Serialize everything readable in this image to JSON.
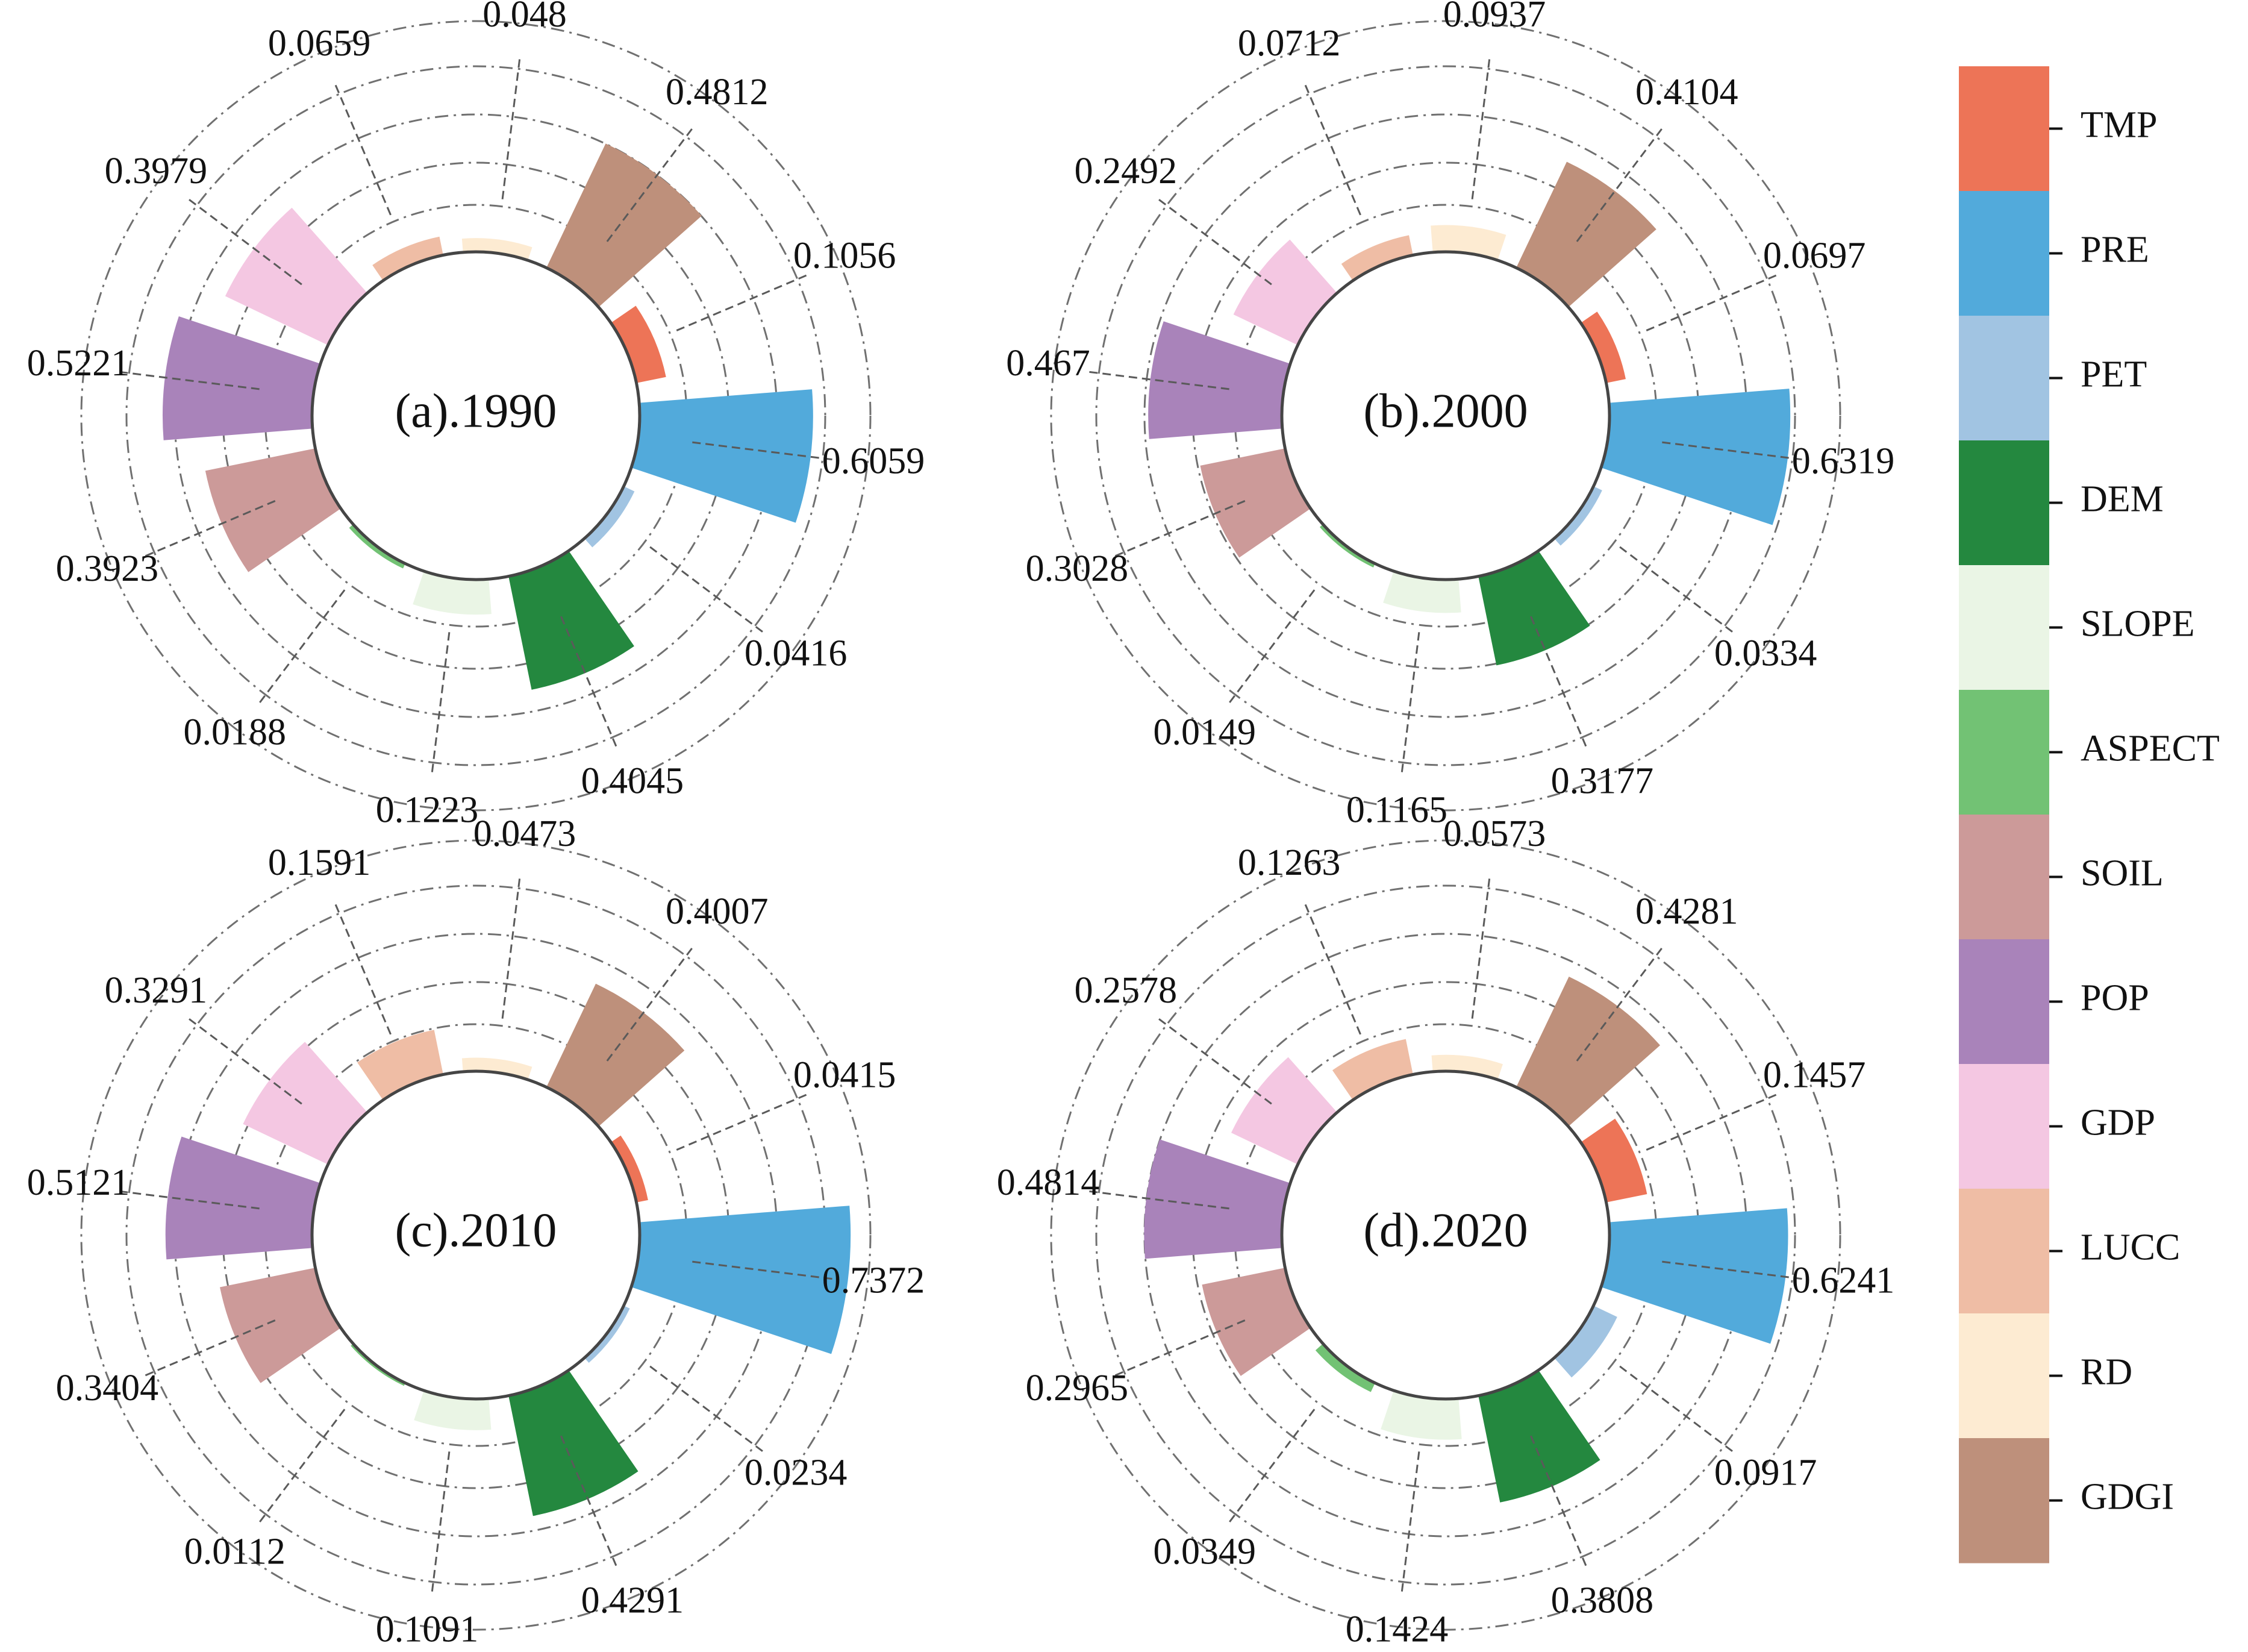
{
  "chart_data": {
    "type": "radial-bar",
    "variables": [
      "TMP",
      "PRE",
      "PET",
      "DEM",
      "SLOPE",
      "ASPECT",
      "SOIL",
      "POP",
      "GDP",
      "LUCC",
      "RD",
      "GDGI"
    ],
    "colors": {
      "TMP": "#ED7457",
      "PRE": "#52AADB",
      "PET": "#A1C4E2",
      "DEM": "#24883F",
      "SLOPE": "#EAF5E5",
      "ASPECT": "#72C274",
      "SOIL": "#CC9A99",
      "POP": "#A983BA",
      "GDP": "#F4C7E2",
      "LUCC": "#EFBDA5",
      "RD": "#FDEBD2",
      "GDGI": "#BE907B"
    },
    "legend": {
      "items": [
        "TMP",
        "PRE",
        "PET",
        "DEM",
        "SLOPE",
        "ASPECT",
        "SOIL",
        "POP",
        "GDP",
        "LUCC",
        "RD",
        "GDGI"
      ]
    },
    "panels": [
      {
        "title": "(a).1990",
        "values": {
          "TMP": 0.1056,
          "PRE": 0.6059,
          "PET": 0.0416,
          "DEM": 0.4045,
          "SLOPE": 0.1223,
          "ASPECT": 0.0188,
          "SOIL": 0.3923,
          "POP": 0.5221,
          "GDP": 0.3979,
          "LUCC": 0.0659,
          "RD": 0.048,
          "GDGI": 0.4812
        },
        "labels": {
          "TMP": "0.1056",
          "PRE": "0.6059",
          "PET": "0.0416",
          "DEM": "0.4045",
          "SLOPE": "0.1223",
          "ASPECT": "0.0188",
          "SOIL": "0.3923",
          "POP": "0.5221",
          "GDP": "0.3979",
          "LUCC": "0.0659",
          "RD": "0.048",
          "GDGI": "0.4812"
        }
      },
      {
        "title": "(b).2000",
        "values": {
          "TMP": 0.0697,
          "PRE": 0.6319,
          "PET": 0.0334,
          "DEM": 0.3177,
          "SLOPE": 0.1165,
          "ASPECT": 0.0149,
          "SOIL": 0.3028,
          "POP": 0.467,
          "GDP": 0.2492,
          "LUCC": 0.0712,
          "RD": 0.0937,
          "GDGI": 0.4104
        },
        "labels": {
          "TMP": "0.0697",
          "PRE": "0.6319",
          "PET": "0.0334",
          "DEM": "0.3177",
          "SLOPE": "0.1165",
          "ASPECT": "0.0149",
          "SOIL": "0.3028",
          "POP": "0.467",
          "GDP": "0.2492",
          "LUCC": "0.0712",
          "RD": "0.0937",
          "GDGI": "0.4104"
        }
      },
      {
        "title": "(c).2010",
        "values": {
          "TMP": 0.0415,
          "PRE": 0.7372,
          "PET": 0.0234,
          "DEM": 0.4291,
          "SLOPE": 0.1091,
          "ASPECT": 0.0112,
          "SOIL": 0.3404,
          "POP": 0.5121,
          "GDP": 0.3291,
          "LUCC": 0.1591,
          "RD": 0.0473,
          "GDGI": 0.4007
        },
        "labels": {
          "TMP": "0.0415",
          "PRE": "0.7372",
          "PET": "0.0234",
          "DEM": "0.4291",
          "SLOPE": "0.1091",
          "ASPECT": "0.0112",
          "SOIL": "0.3404",
          "POP": "0.5121",
          "GDP": "0.3291",
          "LUCC": "0.1591",
          "RD": "0.0473",
          "GDGI": "0.4007"
        }
      },
      {
        "title": "(d).2020",
        "values": {
          "TMP": 0.1457,
          "PRE": 0.6241,
          "PET": 0.0917,
          "DEM": 0.3808,
          "SLOPE": 0.1424,
          "ASPECT": 0.0349,
          "SOIL": 0.2965,
          "POP": 0.4814,
          "GDP": 0.2578,
          "LUCC": 0.1263,
          "RD": 0.0573,
          "GDGI": 0.4281
        },
        "labels": {
          "TMP": "0.1457",
          "PRE": "0.6241",
          "PET": "0.0917",
          "DEM": "0.3808",
          "SLOPE": "0.1424",
          "ASPECT": "0.0349",
          "SOIL": "0.2965",
          "POP": "0.4814",
          "GDP": "0.2578",
          "LUCC": "0.1263",
          "RD": "0.0573",
          "GDGI": "0.4281"
        }
      }
    ]
  }
}
